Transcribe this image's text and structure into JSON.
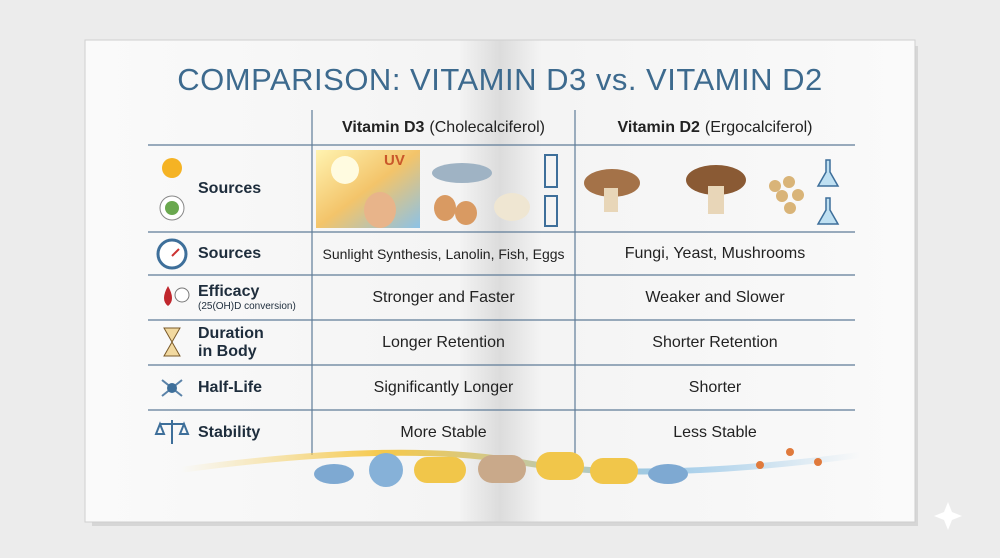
{
  "title": "COMPARISON: VITAMIN D3 vs. VITAMIN D2",
  "header": {
    "d3": {
      "name": "Vitamin D3",
      "note": "(Cholecalciferol)"
    },
    "d2": {
      "name": "Vitamin D2",
      "note": "(Ergocalciferol)"
    }
  },
  "image_label": "UV",
  "rows": [
    {
      "label": "Sources"
    },
    {
      "label": "Sources",
      "d3": "Sunlight Synthesis, Lanolin, Fish, Eggs",
      "d2": "Fungi, Yeast, Mushrooms"
    },
    {
      "label": "Efficacy",
      "sublabel": "(25(OH)D conversion)",
      "d3": "Stronger and Faster",
      "d2": "Weaker and Slower"
    },
    {
      "label": "Duration in Body",
      "d3": "Longer Retention",
      "d2": "Shorter Retention"
    },
    {
      "label": "Half-Life",
      "d3": "Significantly Longer",
      "d2": "Shorter"
    },
    {
      "label": "Stability",
      "d3": "More Stable",
      "d2": "Less Stable"
    }
  ]
}
